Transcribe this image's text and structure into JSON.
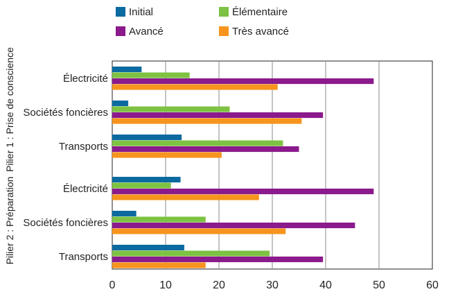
{
  "chart_data": {
    "type": "bar",
    "orientation": "horizontal",
    "legend": [
      {
        "name": "Initial",
        "color": "#0b6aa0"
      },
      {
        "name": "Élémentaire",
        "color": "#7dc242"
      },
      {
        "name": "Avancé",
        "color": "#8b1a8c"
      },
      {
        "name": "Très avancé",
        "color": "#f7941d"
      }
    ],
    "groups": [
      {
        "label": "Pilier 1 : Prise de conscience",
        "categories": [
          {
            "name": "Électricité",
            "values": [
              5.5,
              14.5,
              49,
              31
            ]
          },
          {
            "name": "Sociétés foncières",
            "values": [
              3,
              22,
              39.5,
              35.5
            ]
          },
          {
            "name": "Transports",
            "values": [
              13,
              32,
              35,
              20.5
            ]
          }
        ]
      },
      {
        "label": "Pilier 2 : Préparation",
        "categories": [
          {
            "name": "Électricité",
            "values": [
              12.8,
              11,
              49,
              27.5
            ]
          },
          {
            "name": "Sociétés foncières",
            "values": [
              4.5,
              17.5,
              45.5,
              32.5
            ]
          },
          {
            "name": "Transports",
            "values": [
              13.5,
              29.5,
              39.5,
              17.5
            ]
          }
        ]
      }
    ],
    "xlim": [
      0,
      60
    ],
    "xticks": [
      0,
      10,
      20,
      30,
      40,
      50,
      60
    ],
    "grid": "vertical",
    "legend_position": "top"
  }
}
